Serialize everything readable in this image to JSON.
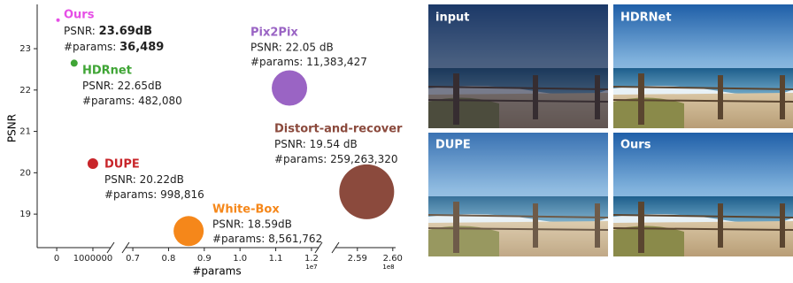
{
  "chart_data": {
    "type": "scatter",
    "xlabel": "#params",
    "ylabel": "PSNR",
    "ylim": [
      18.19,
      24.07
    ],
    "yticks": [
      19,
      20,
      21,
      22,
      23
    ],
    "x_segments": [
      {
        "xlim": [
          -540000,
          1490000
        ],
        "xticks": [
          0,
          1000000
        ]
      },
      {
        "xlim": [
          6800000,
          12200000
        ],
        "xticks": [
          {
            "value": 7000000,
            "label": "0.7"
          },
          {
            "value": 8000000,
            "label": "0.8"
          },
          {
            "value": 9000000,
            "label": "0.9"
          },
          {
            "value": 10000000,
            "label": "1.0"
          },
          {
            "value": 11000000,
            "label": "1.1"
          },
          {
            "value": 12000000,
            "label": "1.2"
          }
        ],
        "offset_label": "1e7"
      },
      {
        "xlim": [
          258380000,
          260080000
        ],
        "xticks": [
          {
            "value": 259000000,
            "label": "2.59"
          },
          {
            "value": 260000000,
            "label": "2.60"
          }
        ],
        "offset_label": "1e8"
      }
    ],
    "points": [
      {
        "name": "Ours",
        "color": "#e64ee6",
        "x": 36489,
        "y": 23.69,
        "size": 4,
        "psnr_prefix": "PSNR:",
        "psnr_label": "23.69dB",
        "params_prefix": "#params:",
        "params_label": "36,489",
        "bold": true
      },
      {
        "name": "HDRnet",
        "color": "#3fa535",
        "x": 482080,
        "y": 22.65,
        "size": 16,
        "psnr_prefix": "PSNR:",
        "psnr_label": "22.65dB",
        "params_prefix": "#params:",
        "params_label": "482,080"
      },
      {
        "name": "DUPE",
        "color": "#c8252a",
        "x": 998816,
        "y": 20.22,
        "size": 36,
        "psnr_prefix": "PSNR:",
        "psnr_label": "20.22dB",
        "params_prefix": "#params:",
        "params_label": "998,816"
      },
      {
        "name": "White-Box",
        "color": "#f5871a",
        "x": 8561762,
        "y": 18.59,
        "size": 289,
        "psnr_prefix": "PSNR:",
        "psnr_label": "18.59dB",
        "params_prefix": "#params:",
        "params_label": "8,561,762"
      },
      {
        "name": "Pix2Pix",
        "color": "#9a64c4",
        "x": 11383427,
        "y": 22.05,
        "size": 400,
        "psnr_prefix": "PSNR:",
        "psnr_label": "22.05 dB",
        "params_prefix": "#params:",
        "params_label": "11,383,427"
      },
      {
        "name": "Distort-and-recover",
        "color": "#8b4a3d",
        "x": 259263320,
        "y": 19.54,
        "size": 961,
        "psnr_prefix": "PSNR:",
        "psnr_label": "19.54 dB",
        "params_prefix": "#params:",
        "params_label": "259,263,320"
      }
    ]
  },
  "panels": [
    "input",
    "HDRNet",
    "DUPE",
    "Ours"
  ]
}
